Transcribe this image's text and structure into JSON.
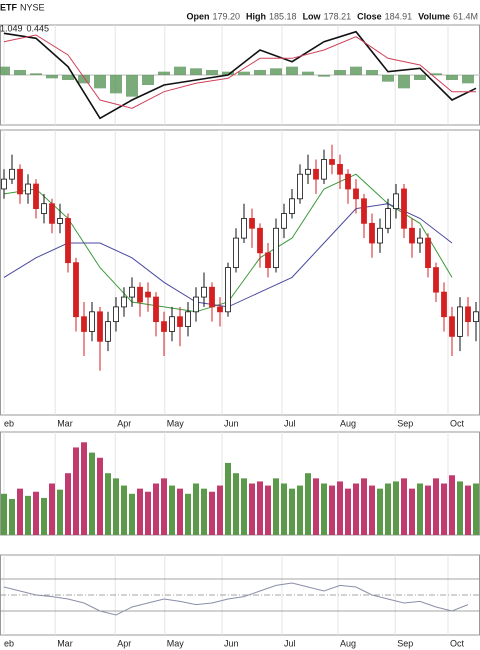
{
  "header": {
    "symbol": "ETF",
    "exchange": "NYSE",
    "fields": [
      {
        "label": "Open",
        "value": "179.20"
      },
      {
        "label": "High",
        "value": "185.18"
      },
      {
        "label": "Low",
        "value": "178.21"
      },
      {
        "label": "Close",
        "value": "184.91"
      },
      {
        "label": "Volume",
        "value": "61.4M"
      }
    ]
  },
  "chart_data": [
    {
      "type": "macd",
      "readout": [
        1.049,
        0.445
      ],
      "readout_colors": [
        "#333333",
        "#3a9a3a"
      ],
      "xlim": [
        -0.5,
        59.5
      ],
      "ylim": [
        -3,
        3
      ],
      "zero": 0,
      "x": [
        0,
        4,
        8,
        12,
        16,
        20,
        24,
        28,
        32,
        36,
        40,
        44,
        48,
        52,
        56,
        59
      ],
      "series": [
        {
          "color": "#111111",
          "values": [
            2.5,
            2.2,
            0.5,
            -2.6,
            -1.5,
            -0.6,
            -0.3,
            0,
            1.5,
            0.8,
            2.0,
            2.6,
            0.2,
            0.4,
            -1.5,
            -0.8
          ]
        },
        {
          "color": "#d0405a",
          "values": [
            2.0,
            2.4,
            1.2,
            -1.5,
            -2.0,
            -1.0,
            -0.5,
            -0.2,
            1.0,
            1.0,
            1.5,
            2.3,
            1.0,
            0.6,
            -1.0,
            -1.0
          ]
        }
      ],
      "hist_x": [
        0,
        2,
        4,
        6,
        8,
        10,
        12,
        14,
        16,
        18,
        20,
        22,
        24,
        26,
        28,
        30,
        32,
        34,
        36,
        38,
        40,
        42,
        44,
        46,
        48,
        50,
        52,
        54,
        56,
        58
      ],
      "hist": [
        0.5,
        0.3,
        0.1,
        -0.2,
        -0.3,
        -0.5,
        -0.8,
        -1.1,
        -1.3,
        -0.6,
        0.2,
        0.5,
        0.4,
        0.3,
        0.2,
        0.2,
        0.3,
        0.4,
        0.5,
        0.2,
        -0.1,
        0.3,
        0.5,
        0.3,
        -0.4,
        -0.8,
        -0.3,
        0.1,
        -0.3,
        -0.5
      ],
      "hist_color": "#4f8f4f"
    },
    {
      "type": "candlestick",
      "xlim": [
        -0.5,
        59.5
      ],
      "ylim": [
        140,
        198
      ],
      "up_color": "#111111",
      "down_color": "#d42020",
      "open": [
        186,
        188,
        190,
        185,
        187,
        181,
        183,
        179,
        180,
        171,
        160,
        157,
        161,
        155,
        159,
        162,
        164,
        166,
        165,
        164,
        159,
        157,
        160,
        158,
        161,
        164,
        166,
        162,
        161,
        170,
        176,
        180,
        178,
        173,
        170,
        178,
        181,
        184,
        189,
        190,
        188,
        192,
        191,
        189,
        186,
        184,
        179,
        175,
        178,
        182,
        186,
        178,
        175,
        176,
        170,
        165,
        160,
        156,
        162,
        159
      ],
      "high": [
        190,
        193,
        191,
        189,
        188,
        185,
        184,
        183,
        181,
        172,
        163,
        163,
        162,
        161,
        164,
        166,
        168,
        167,
        167,
        165,
        161,
        162,
        162,
        163,
        166,
        169,
        167,
        164,
        171,
        178,
        183,
        182,
        179,
        175,
        180,
        183,
        186,
        191,
        193,
        192,
        194,
        195,
        193,
        190,
        188,
        185,
        181,
        180,
        184,
        187,
        187,
        180,
        178,
        177,
        171,
        167,
        162,
        164,
        164,
        163
      ],
      "low": [
        184,
        187,
        183,
        183,
        180,
        179,
        177,
        177,
        169,
        157,
        152,
        155,
        149,
        153,
        157,
        160,
        162,
        160,
        161,
        156,
        152,
        155,
        154,
        156,
        159,
        162,
        159,
        158,
        160,
        169,
        175,
        174,
        170,
        168,
        169,
        176,
        180,
        183,
        187,
        185,
        187,
        189,
        186,
        183,
        181,
        176,
        172,
        173,
        177,
        180,
        176,
        172,
        173,
        168,
        163,
        157,
        152,
        153,
        156,
        155
      ],
      "close": [
        188,
        190,
        185,
        187,
        182,
        183,
        179,
        180,
        171,
        160,
        157,
        161,
        155,
        159,
        162,
        164,
        166,
        163,
        164,
        159,
        157,
        160,
        158,
        161,
        164,
        166,
        162,
        161,
        170,
        176,
        180,
        178,
        173,
        170,
        178,
        181,
        184,
        189,
        190,
        188,
        192,
        191,
        189,
        186,
        184,
        179,
        175,
        178,
        182,
        185,
        178,
        175,
        176,
        170,
        165,
        160,
        156,
        162,
        159,
        161
      ],
      "ma_x": [
        0,
        4,
        8,
        12,
        16,
        20,
        24,
        28,
        32,
        36,
        40,
        44,
        48,
        52,
        56
      ],
      "ma": [
        {
          "color": "#3a9a3a",
          "values": [
            185,
            186,
            180,
            170,
            163,
            162,
            161,
            163,
            172,
            176,
            186,
            189,
            183,
            179,
            168
          ]
        },
        {
          "color": "#4a4aa0",
          "values": [
            168,
            172,
            175,
            175,
            172,
            167,
            163,
            162,
            165,
            168,
            175,
            182,
            183,
            180,
            175
          ]
        }
      ],
      "categories": [
        "eb",
        "Mar",
        "Apr",
        "May",
        "Jun",
        "Jul",
        "Aug",
        "Sep",
        "Oct"
      ],
      "month_x": [
        0,
        6.4,
        13.9,
        20.1,
        27.25,
        34.75,
        41.75,
        48.9,
        55.5
      ]
    },
    {
      "type": "bar",
      "xlim": [
        -0.5,
        59.5
      ],
      "ylim": [
        0,
        100
      ],
      "up_color": "#5a9a4a",
      "down_color": "#c23b6e",
      "values": [
        40,
        35,
        45,
        38,
        42,
        36,
        50,
        44,
        60,
        85,
        90,
        80,
        75,
        60,
        55,
        48,
        40,
        45,
        42,
        50,
        55,
        48,
        45,
        40,
        50,
        45,
        42,
        48,
        70,
        60,
        55,
        50,
        52,
        48,
        55,
        50,
        45,
        48,
        60,
        55,
        50,
        48,
        52,
        45,
        50,
        55,
        48,
        45,
        50,
        52,
        55,
        45,
        50,
        48,
        55,
        50,
        58,
        52,
        48,
        50
      ]
    },
    {
      "type": "line",
      "xlim": [
        -0.5,
        59.5
      ],
      "ylim": [
        0,
        100
      ],
      "color": "#8a8fa8",
      "ref_lines": [
        70,
        50,
        30
      ],
      "x": [
        0,
        2,
        4,
        6,
        8,
        10,
        12,
        14,
        16,
        18,
        20,
        22,
        24,
        26,
        28,
        30,
        32,
        34,
        36,
        38,
        40,
        42,
        44,
        46,
        48,
        50,
        52,
        54,
        56,
        58
      ],
      "values": [
        60,
        55,
        50,
        48,
        45,
        40,
        30,
        25,
        35,
        40,
        45,
        42,
        38,
        40,
        45,
        48,
        55,
        62,
        65,
        60,
        55,
        62,
        60,
        50,
        45,
        40,
        42,
        35,
        30,
        38
      ]
    }
  ]
}
